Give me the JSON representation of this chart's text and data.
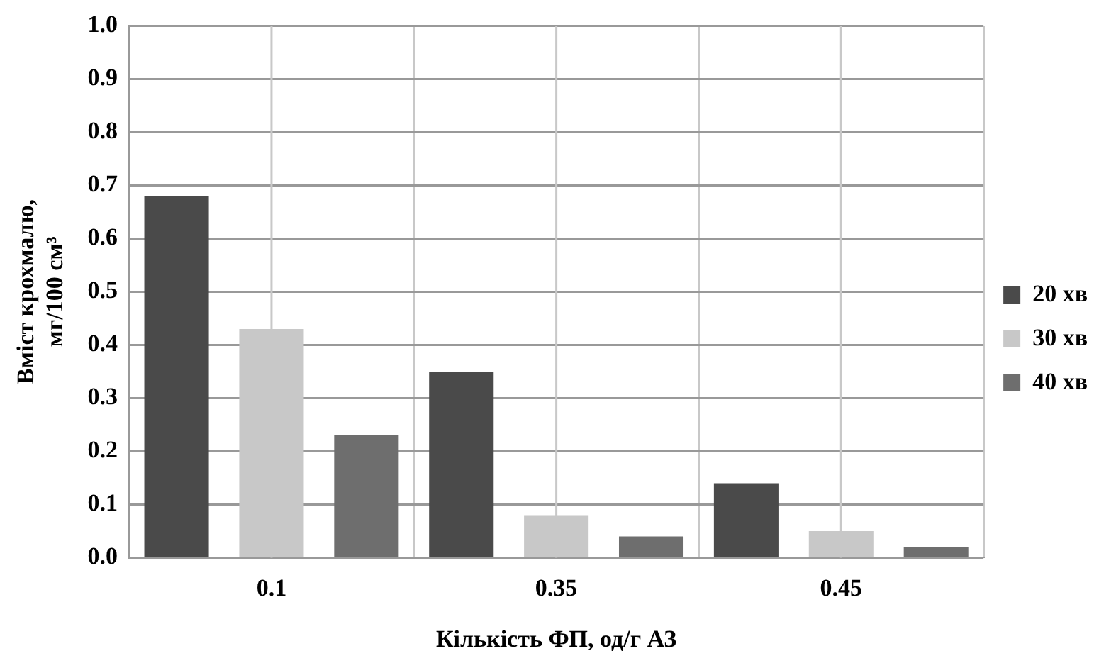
{
  "chart_data": {
    "type": "bar",
    "xlabel": "Кількість ФП, од/г АЗ",
    "ylabel": "Вміст крохмалю, мг/100 см³",
    "categories": [
      "0.1",
      "0.35",
      "0.45"
    ],
    "series": [
      {
        "name": "20 хв",
        "color": "#4a4a4a",
        "values": [
          0.68,
          0.35,
          0.14
        ]
      },
      {
        "name": "30 хв",
        "color": "#c8c8c8",
        "values": [
          0.43,
          0.08,
          0.05
        ]
      },
      {
        "name": "40 хв",
        "color": "#6e6e6e",
        "values": [
          0.23,
          0.04,
          0.02
        ]
      }
    ],
    "ylim": [
      0,
      1
    ],
    "yticks": [
      {
        "value": 0,
        "label": "0.0"
      },
      {
        "value": 0.1,
        "label": "0.1"
      },
      {
        "value": 0.2,
        "label": "0.2"
      },
      {
        "value": 0.3,
        "label": "0.3"
      },
      {
        "value": 0.4,
        "label": "0.4"
      },
      {
        "value": 0.5,
        "label": "0.5"
      },
      {
        "value": 0.6,
        "label": "0.6"
      },
      {
        "value": 0.7,
        "label": "0.7"
      },
      {
        "value": 0.8,
        "label": "0.8"
      },
      {
        "value": 0.9,
        "label": "0.9"
      },
      {
        "value": 1,
        "label": "1.0"
      }
    ],
    "grid": true,
    "legend": "right"
  }
}
